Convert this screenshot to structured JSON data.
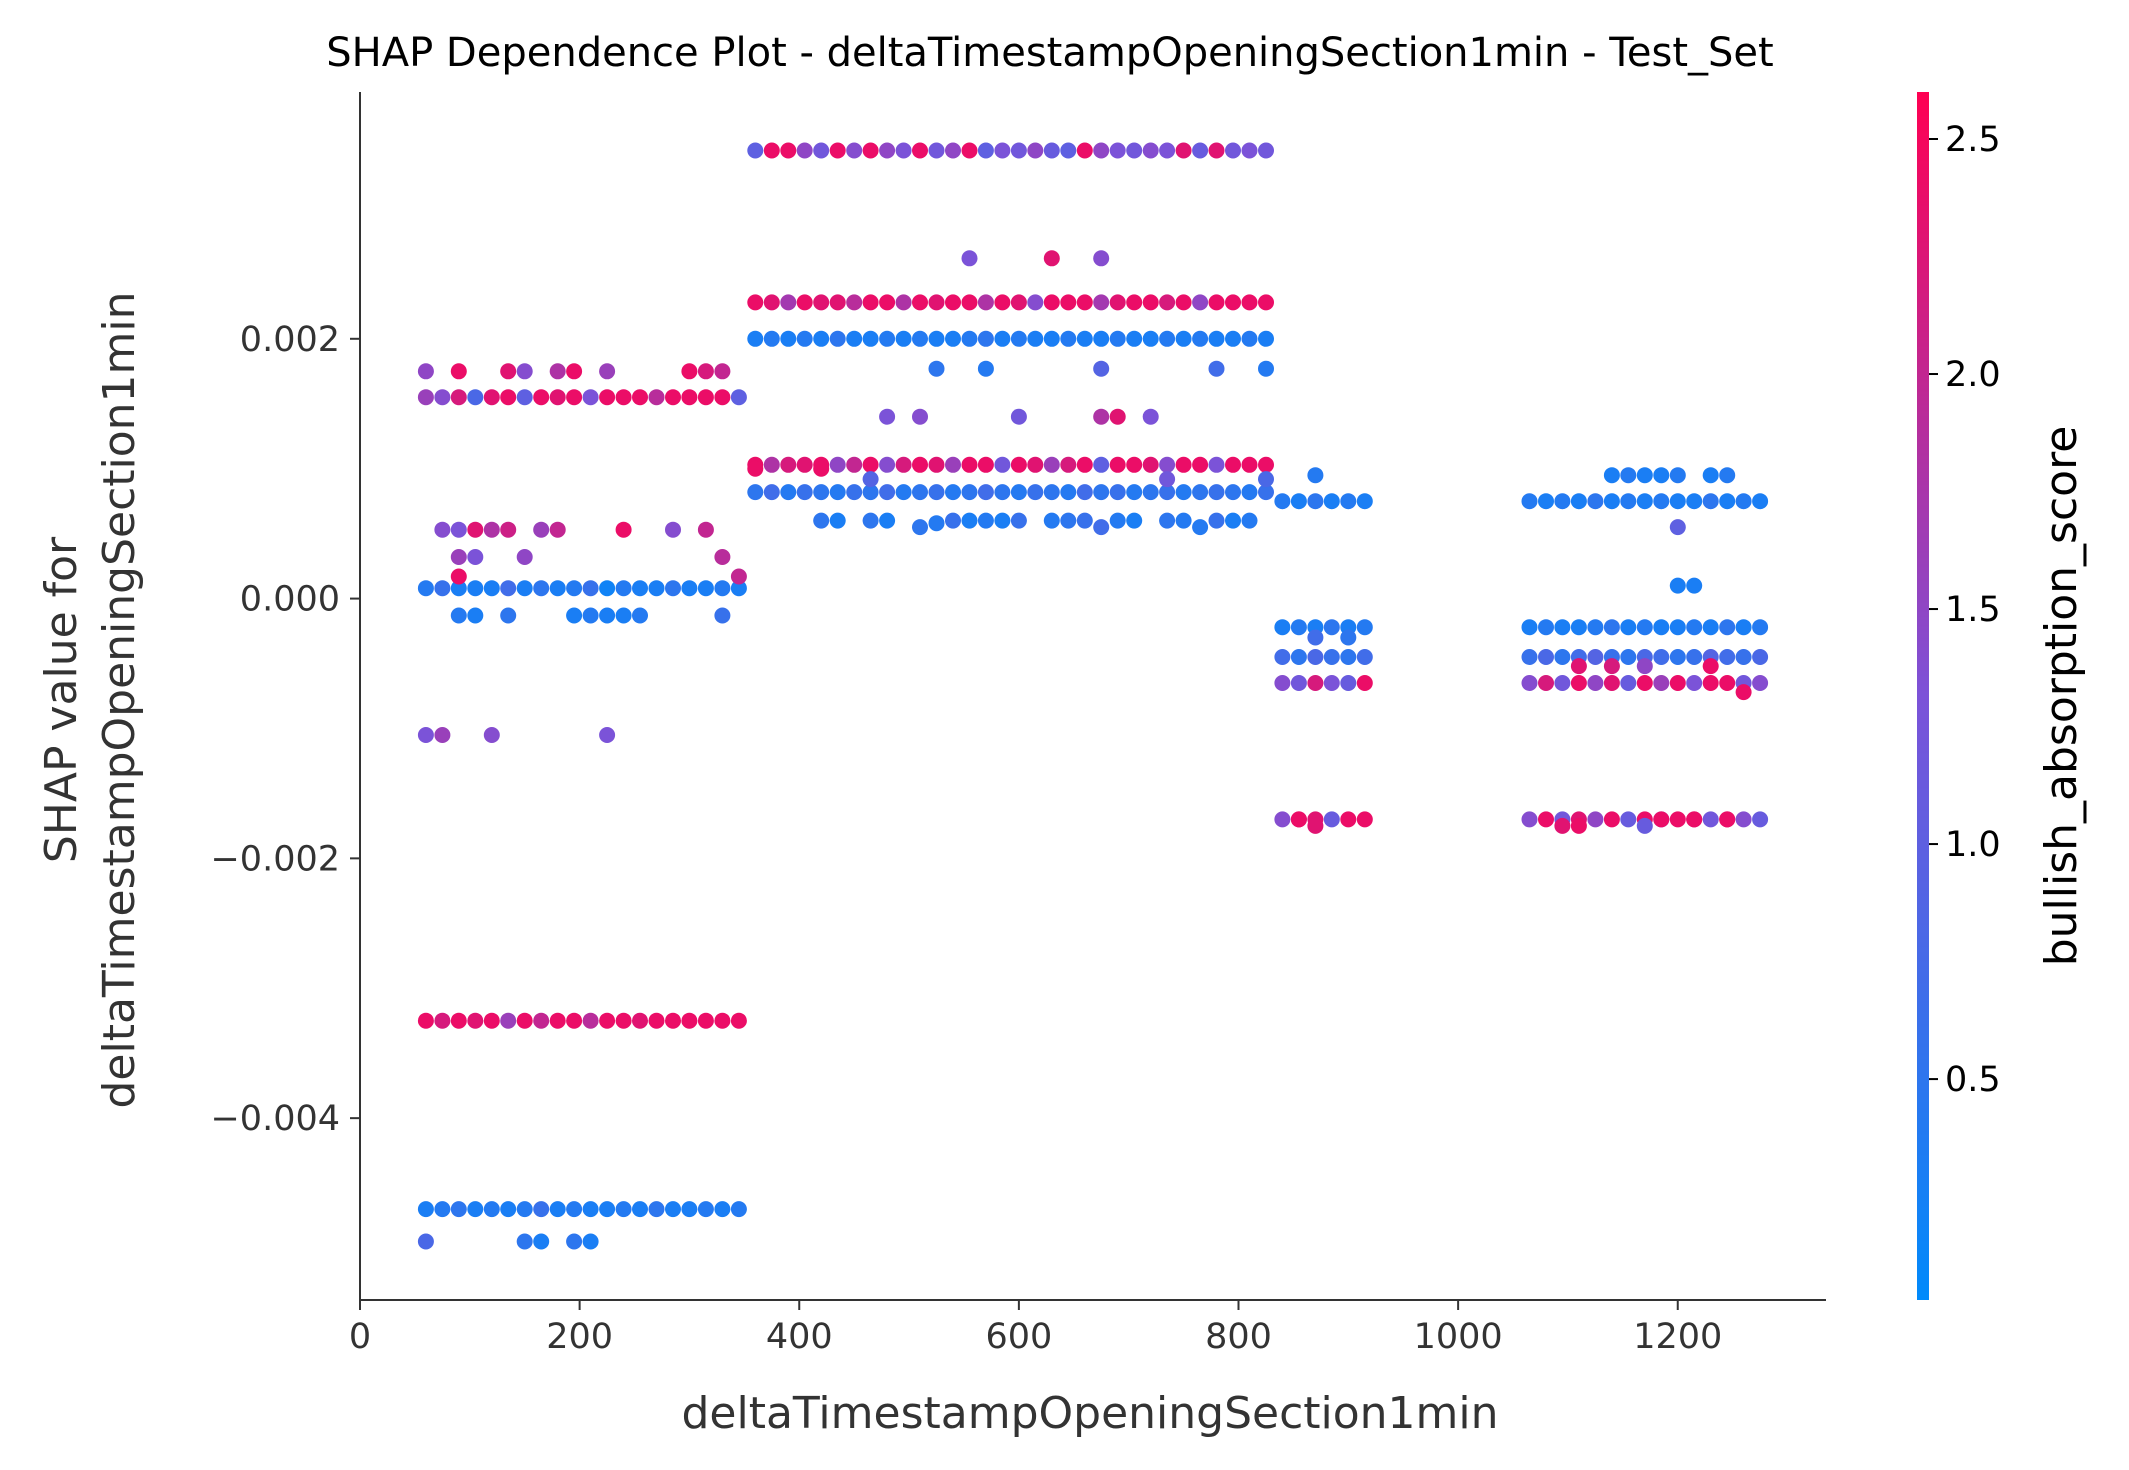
{
  "chart_data": {
    "type": "scatter",
    "title": "SHAP Dependence Plot - deltaTimestampOpeningSection1min - Test_Set",
    "xlabel": "deltaTimestampOpeningSection1min",
    "ylabel": [
      "SHAP value for",
      "deltaTimestampOpeningSection1min"
    ],
    "xlim": [
      0,
      1335
    ],
    "ylim": [
      -0.0054,
      0.0039
    ],
    "x_ticks": [
      0,
      200,
      400,
      600,
      800,
      1000,
      1200
    ],
    "x_tick_labels": [
      "0",
      "200",
      "400",
      "600",
      "800",
      "1000",
      "1200"
    ],
    "y_ticks": [
      0.002,
      0.0,
      -0.002,
      -0.004
    ],
    "y_tick_labels": [
      "0.002",
      "0.000",
      "−0.002",
      "−0.004"
    ],
    "grid": false,
    "colorbar": {
      "label": "bullish_absorption_score",
      "range": [
        0.03,
        2.6
      ],
      "ticks": [
        0.5,
        1.0,
        1.5,
        2.0,
        2.5
      ],
      "tick_labels": [
        "0.5",
        "1.0",
        "1.5",
        "2.0",
        "2.5"
      ],
      "low_color": "#008afb",
      "mid_color": "#7c52d8",
      "high_color": "#ff0052"
    },
    "bands": [
      {
        "x": [
          60,
          345
        ],
        "y": 0.00155,
        "colors": [
          1.6,
          1.4,
          2.2,
          0.8,
          2.3,
          2.4,
          1.0,
          2.4,
          2.3,
          2.4,
          1.3,
          2.4,
          2.4,
          2.4,
          1.9,
          2.4,
          2.4,
          2.4,
          2.4,
          1.0
        ]
      },
      {
        "x": [
          60,
          345
        ],
        "y": 8e-05,
        "colors": [
          0.4,
          0.6,
          0.3,
          0.3,
          0.3,
          0.7,
          0.3,
          0.5,
          0.3,
          0.4,
          0.6,
          0.2,
          0.4,
          0.3,
          0.3,
          0.5,
          0.3,
          0.3,
          0.4,
          0.3
        ]
      },
      {
        "x": [
          60,
          345
        ],
        "y": -0.00325,
        "colors": [
          2.4,
          2.2,
          2.4,
          2.3,
          2.4,
          1.6,
          2.4,
          2.0,
          2.4,
          2.4,
          1.9,
          2.4,
          2.4,
          2.3,
          2.4,
          2.4,
          2.4,
          2.4,
          2.4,
          2.4
        ]
      },
      {
        "x": [
          60,
          345
        ],
        "y": -0.0047,
        "colors": [
          0.3,
          0.4,
          0.5,
          0.3,
          0.4,
          0.3,
          0.4,
          0.6,
          0.3,
          0.4,
          0.3,
          0.3,
          0.4,
          0.3,
          0.5,
          0.3,
          0.3,
          0.4,
          0.3,
          0.4
        ]
      },
      {
        "x": [
          360,
          825
        ],
        "y": 0.00345,
        "colors": [
          1.0,
          2.4,
          2.4,
          1.5,
          1.2,
          2.4,
          1.4,
          2.4,
          1.5,
          1.3,
          2.4,
          1.2,
          1.5,
          2.4,
          1.0,
          1.3,
          1.2,
          1.5,
          1.1,
          1.0,
          2.4,
          1.5,
          1.3,
          1.2,
          1.4,
          1.3,
          2.3,
          1.1,
          2.3,
          1.2,
          1.3,
          1.2
        ]
      },
      {
        "x": [
          360,
          825
        ],
        "y": 0.00228,
        "colors": [
          2.4,
          2.3,
          1.7,
          2.4,
          2.3,
          2.3,
          1.9,
          2.4,
          2.4,
          1.8,
          2.4,
          2.3,
          2.4,
          2.4,
          1.8,
          2.4,
          2.3,
          1.4,
          2.4,
          2.4,
          2.4,
          1.7,
          2.3,
          2.4,
          2.4,
          2.2,
          2.4,
          1.5,
          2.4,
          2.4,
          2.4,
          2.4
        ]
      },
      {
        "x": [
          360,
          825
        ],
        "y": 0.002,
        "colors": [
          0.3,
          0.4,
          0.3,
          0.4,
          0.3,
          0.5,
          0.3,
          0.3,
          0.4,
          0.3,
          0.4,
          0.3,
          0.3,
          0.4,
          0.5,
          0.3,
          0.4,
          0.3,
          0.3,
          0.4,
          0.3,
          0.3,
          0.4,
          0.3,
          0.3,
          0.4,
          0.3,
          0.4,
          0.3,
          0.3,
          0.4,
          0.3
        ]
      },
      {
        "x": [
          360,
          825
        ],
        "y": 0.00103,
        "colors": [
          2.4,
          1.8,
          2.2,
          2.3,
          2.4,
          1.5,
          2.0,
          2.4,
          1.4,
          2.2,
          2.4,
          2.3,
          1.6,
          2.4,
          2.4,
          1.2,
          2.4,
          2.3,
          1.6,
          2.2,
          2.4,
          1.0,
          2.4,
          2.4,
          2.3,
          1.4,
          2.4,
          2.4,
          1.3,
          2.4,
          2.4,
          2.4
        ]
      },
      {
        "x": [
          360,
          825
        ],
        "y": 0.00082,
        "colors": [
          0.5,
          0.7,
          0.4,
          0.6,
          0.5,
          0.4,
          0.6,
          0.5,
          0.7,
          0.4,
          0.5,
          0.6,
          0.4,
          0.5,
          0.7,
          0.5,
          0.4,
          0.6,
          0.5,
          0.4,
          0.7,
          0.5,
          0.6,
          0.4,
          0.5,
          0.6,
          0.4,
          0.5,
          0.6,
          0.5,
          0.4,
          0.6
        ]
      },
      {
        "x": [
          840,
          915
        ],
        "y": 0.00075,
        "colors": [
          0.4,
          0.3,
          0.5,
          0.3,
          0.4,
          0.3
        ]
      },
      {
        "x": [
          840,
          915
        ],
        "y": -0.00022,
        "colors": [
          0.3,
          0.4,
          0.3,
          0.5,
          0.3,
          0.4
        ]
      },
      {
        "x": [
          840,
          915
        ],
        "y": -0.00045,
        "colors": [
          0.7,
          0.5,
          0.8,
          0.6,
          0.5,
          0.7
        ]
      },
      {
        "x": [
          840,
          915
        ],
        "y": -0.00065,
        "colors": [
          1.4,
          1.2,
          2.2,
          1.3,
          1.1,
          2.4
        ]
      },
      {
        "x": [
          840,
          915
        ],
        "y": -0.0017,
        "colors": [
          1.4,
          2.4,
          2.3,
          1.1,
          2.4,
          2.4
        ]
      },
      {
        "x": [
          1065,
          1275
        ],
        "y": 0.00075,
        "colors": [
          0.4,
          0.3,
          0.4,
          0.3,
          0.5,
          0.3,
          0.4,
          0.3,
          0.4,
          0.3,
          0.3,
          0.5,
          0.3,
          0.4,
          0.3
        ]
      },
      {
        "x": [
          1065,
          1275
        ],
        "y": -0.00022,
        "colors": [
          0.3,
          0.4,
          0.3,
          0.3,
          0.4,
          0.5,
          0.3,
          0.4,
          0.3,
          0.3,
          0.4,
          0.3,
          0.5,
          0.3,
          0.4
        ]
      },
      {
        "x": [
          1065,
          1275
        ],
        "y": -0.00045,
        "colors": [
          0.6,
          0.8,
          0.5,
          0.7,
          0.9,
          0.6,
          0.5,
          0.8,
          0.7,
          0.5,
          0.6,
          0.9,
          0.7,
          0.6,
          0.8
        ]
      },
      {
        "x": [
          1065,
          1275
        ],
        "y": -0.00065,
        "colors": [
          1.4,
          2.2,
          1.2,
          2.4,
          1.5,
          2.3,
          1.1,
          2.4,
          1.6,
          2.4,
          1.3,
          2.4,
          2.4,
          1.2,
          1.4
        ]
      },
      {
        "x": [
          1065,
          1275
        ],
        "y": -0.0017,
        "colors": [
          1.4,
          2.4,
          1.2,
          2.3,
          1.5,
          2.4,
          1.1,
          2.4,
          1.3,
          2.4,
          2.3,
          1.2,
          2.4,
          1.4,
          1.1
        ]
      }
    ],
    "points": [
      {
        "x": 60,
        "y": 0.00175,
        "c": 1.5
      },
      {
        "x": 90,
        "y": 0.00175,
        "c": 2.4
      },
      {
        "x": 135,
        "y": 0.00175,
        "c": 2.3
      },
      {
        "x": 150,
        "y": 0.00175,
        "c": 1.4
      },
      {
        "x": 180,
        "y": 0.00175,
        "c": 1.8
      },
      {
        "x": 195,
        "y": 0.00175,
        "c": 2.4
      },
      {
        "x": 225,
        "y": 0.00175,
        "c": 1.6
      },
      {
        "x": 300,
        "y": 0.00175,
        "c": 2.4
      },
      {
        "x": 315,
        "y": 0.00175,
        "c": 2.2
      },
      {
        "x": 330,
        "y": 0.00175,
        "c": 2.0
      },
      {
        "x": 75,
        "y": 0.00053,
        "c": 1.4
      },
      {
        "x": 90,
        "y": 0.00053,
        "c": 1.3
      },
      {
        "x": 105,
        "y": 0.00053,
        "c": 2.3
      },
      {
        "x": 120,
        "y": 0.00053,
        "c": 1.8
      },
      {
        "x": 135,
        "y": 0.00053,
        "c": 2.1
      },
      {
        "x": 165,
        "y": 0.00053,
        "c": 1.6
      },
      {
        "x": 180,
        "y": 0.00053,
        "c": 2.0
      },
      {
        "x": 240,
        "y": 0.00053,
        "c": 2.4
      },
      {
        "x": 285,
        "y": 0.00053,
        "c": 1.4
      },
      {
        "x": 315,
        "y": 0.00053,
        "c": 2.0
      },
      {
        "x": 90,
        "y": 0.00032,
        "c": 1.6
      },
      {
        "x": 105,
        "y": 0.00032,
        "c": 1.3
      },
      {
        "x": 150,
        "y": 0.00032,
        "c": 1.5
      },
      {
        "x": 330,
        "y": 0.00032,
        "c": 1.9
      },
      {
        "x": 90,
        "y": 0.00017,
        "c": 2.4
      },
      {
        "x": 345,
        "y": 0.00017,
        "c": 2.0
      },
      {
        "x": 90,
        "y": -0.00013,
        "c": 0.4
      },
      {
        "x": 105,
        "y": -0.00013,
        "c": 0.3
      },
      {
        "x": 135,
        "y": -0.00013,
        "c": 0.5
      },
      {
        "x": 195,
        "y": -0.00013,
        "c": 0.3
      },
      {
        "x": 210,
        "y": -0.00013,
        "c": 0.4
      },
      {
        "x": 225,
        "y": -0.00013,
        "c": 0.3
      },
      {
        "x": 240,
        "y": -0.00013,
        "c": 0.3
      },
      {
        "x": 255,
        "y": -0.00013,
        "c": 0.4
      },
      {
        "x": 330,
        "y": -0.00013,
        "c": 0.6
      },
      {
        "x": 60,
        "y": -0.00105,
        "c": 1.3
      },
      {
        "x": 75,
        "y": -0.00105,
        "c": 1.6
      },
      {
        "x": 120,
        "y": -0.00105,
        "c": 1.4
      },
      {
        "x": 225,
        "y": -0.00105,
        "c": 1.3
      },
      {
        "x": 60,
        "y": -0.00495,
        "c": 0.8
      },
      {
        "x": 150,
        "y": -0.00495,
        "c": 0.5
      },
      {
        "x": 165,
        "y": -0.00495,
        "c": 0.3
      },
      {
        "x": 195,
        "y": -0.00495,
        "c": 0.5
      },
      {
        "x": 210,
        "y": -0.00495,
        "c": 0.3
      },
      {
        "x": 555,
        "y": 0.00262,
        "c": 1.3
      },
      {
        "x": 630,
        "y": 0.00262,
        "c": 2.3
      },
      {
        "x": 675,
        "y": 0.00262,
        "c": 1.4
      },
      {
        "x": 525,
        "y": 0.00177,
        "c": 0.5
      },
      {
        "x": 570,
        "y": 0.00177,
        "c": 0.4
      },
      {
        "x": 675,
        "y": 0.00177,
        "c": 0.9
      },
      {
        "x": 780,
        "y": 0.00177,
        "c": 0.7
      },
      {
        "x": 825,
        "y": 0.00177,
        "c": 0.4
      },
      {
        "x": 480,
        "y": 0.0014,
        "c": 1.3
      },
      {
        "x": 510,
        "y": 0.0014,
        "c": 1.4
      },
      {
        "x": 600,
        "y": 0.0014,
        "c": 1.2
      },
      {
        "x": 675,
        "y": 0.0014,
        "c": 1.8
      },
      {
        "x": 690,
        "y": 0.0014,
        "c": 2.3
      },
      {
        "x": 720,
        "y": 0.0014,
        "c": 1.3
      },
      {
        "x": 360,
        "y": 0.001,
        "c": 2.4
      },
      {
        "x": 420,
        "y": 0.001,
        "c": 2.4
      },
      {
        "x": 465,
        "y": 0.00092,
        "c": 0.9
      },
      {
        "x": 735,
        "y": 0.00092,
        "c": 1.2
      },
      {
        "x": 825,
        "y": 0.00092,
        "c": 0.8
      },
      {
        "x": 420,
        "y": 0.0006,
        "c": 0.5
      },
      {
        "x": 435,
        "y": 0.0006,
        "c": 0.3
      },
      {
        "x": 465,
        "y": 0.0006,
        "c": 0.5
      },
      {
        "x": 480,
        "y": 0.0006,
        "c": 0.3
      },
      {
        "x": 510,
        "y": 0.00055,
        "c": 0.5
      },
      {
        "x": 525,
        "y": 0.00058,
        "c": 0.4
      },
      {
        "x": 540,
        "y": 0.0006,
        "c": 0.6
      },
      {
        "x": 555,
        "y": 0.0006,
        "c": 0.3
      },
      {
        "x": 570,
        "y": 0.0006,
        "c": 0.4
      },
      {
        "x": 585,
        "y": 0.0006,
        "c": 0.3
      },
      {
        "x": 600,
        "y": 0.0006,
        "c": 0.6
      },
      {
        "x": 630,
        "y": 0.0006,
        "c": 0.4
      },
      {
        "x": 645,
        "y": 0.0006,
        "c": 0.5
      },
      {
        "x": 660,
        "y": 0.0006,
        "c": 0.6
      },
      {
        "x": 675,
        "y": 0.00055,
        "c": 0.7
      },
      {
        "x": 690,
        "y": 0.0006,
        "c": 0.4
      },
      {
        "x": 705,
        "y": 0.0006,
        "c": 0.3
      },
      {
        "x": 735,
        "y": 0.0006,
        "c": 0.5
      },
      {
        "x": 750,
        "y": 0.0006,
        "c": 0.4
      },
      {
        "x": 765,
        "y": 0.00055,
        "c": 0.4
      },
      {
        "x": 780,
        "y": 0.0006,
        "c": 0.6
      },
      {
        "x": 795,
        "y": 0.0006,
        "c": 0.3
      },
      {
        "x": 810,
        "y": 0.0006,
        "c": 0.4
      },
      {
        "x": 870,
        "y": 0.00095,
        "c": 0.4
      },
      {
        "x": 870,
        "y": -0.0003,
        "c": 0.7
      },
      {
        "x": 900,
        "y": -0.0003,
        "c": 0.5
      },
      {
        "x": 1140,
        "y": 0.00095,
        "c": 0.3
      },
      {
        "x": 1155,
        "y": 0.00095,
        "c": 0.4
      },
      {
        "x": 1170,
        "y": 0.00095,
        "c": 0.3
      },
      {
        "x": 1185,
        "y": 0.00095,
        "c": 0.3
      },
      {
        "x": 1200,
        "y": 0.00095,
        "c": 0.4
      },
      {
        "x": 1230,
        "y": 0.00095,
        "c": 0.3
      },
      {
        "x": 1245,
        "y": 0.00095,
        "c": 0.4
      },
      {
        "x": 1200,
        "y": 0.00055,
        "c": 1.0
      },
      {
        "x": 1200,
        "y": 0.0001,
        "c": 0.3
      },
      {
        "x": 1215,
        "y": 0.0001,
        "c": 0.3
      },
      {
        "x": 1110,
        "y": -0.00052,
        "c": 2.3
      },
      {
        "x": 1140,
        "y": -0.00052,
        "c": 2.2
      },
      {
        "x": 1170,
        "y": -0.00052,
        "c": 1.5
      },
      {
        "x": 1230,
        "y": -0.00052,
        "c": 2.4
      },
      {
        "x": 1260,
        "y": -0.00072,
        "c": 2.4
      },
      {
        "x": 855,
        "y": -0.0017,
        "c": 2.4
      },
      {
        "x": 870,
        "y": -0.00175,
        "c": 2.3
      },
      {
        "x": 1110,
        "y": -0.00175,
        "c": 2.4
      },
      {
        "x": 1185,
        "y": -0.0017,
        "c": 2.4
      },
      {
        "x": 1215,
        "y": -0.0017,
        "c": 2.4
      },
      {
        "x": 1245,
        "y": -0.0017,
        "c": 2.4
      },
      {
        "x": 1095,
        "y": -0.00175,
        "c": 2.3
      },
      {
        "x": 1170,
        "y": -0.00175,
        "c": 1.1
      }
    ]
  }
}
